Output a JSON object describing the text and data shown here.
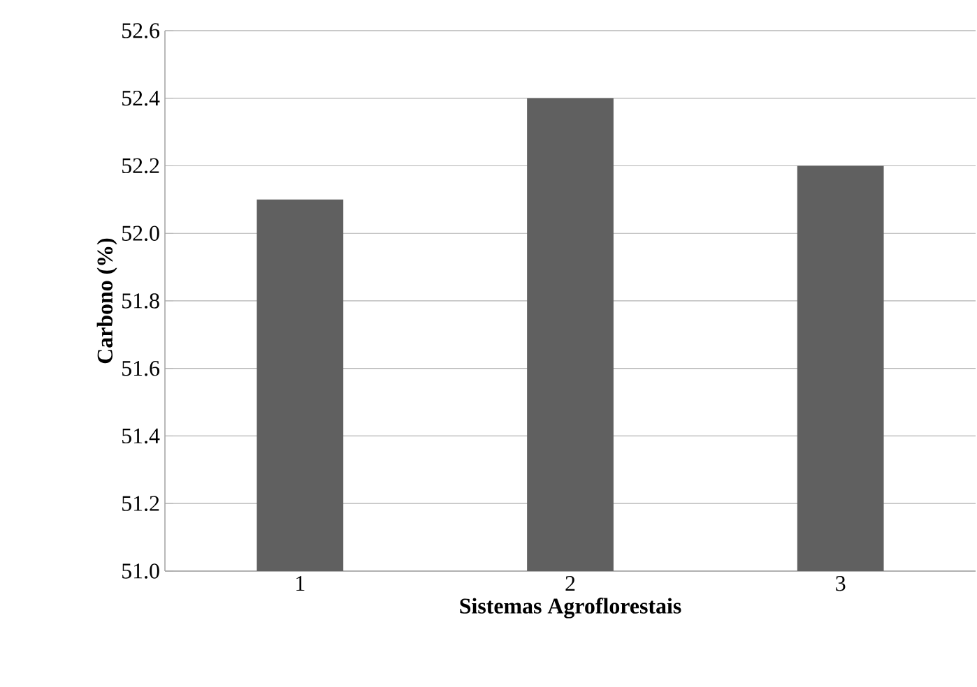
{
  "chart_data": {
    "type": "bar",
    "xlabel": "Sistemas Agroflorestais",
    "ylabel": "Carbono (%)",
    "categories": [
      "1",
      "2",
      "3"
    ],
    "values": [
      52.1,
      52.4,
      52.2
    ],
    "color": "#606060",
    "ylim": [
      51.0,
      52.6
    ],
    "yticks": [
      {
        "value": 51.0,
        "label": "51.0"
      },
      {
        "value": 51.2,
        "label": "51.2"
      },
      {
        "value": 51.4,
        "label": "51.4"
      },
      {
        "value": 51.6,
        "label": "51.6"
      },
      {
        "value": 51.8,
        "label": "51.8"
      },
      {
        "value": 52.0,
        "label": "52.0"
      },
      {
        "value": 52.2,
        "label": "52.2"
      },
      {
        "value": 52.4,
        "label": "52.4"
      },
      {
        "value": 52.6,
        "label": "52.6"
      }
    ],
    "grid": "y"
  }
}
